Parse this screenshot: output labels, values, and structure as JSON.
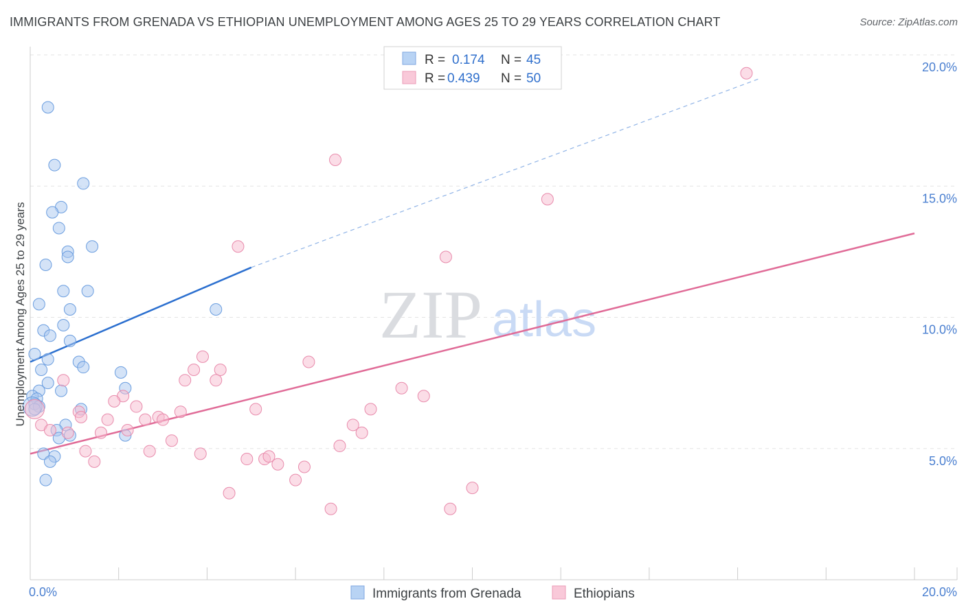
{
  "title": "IMMIGRANTS FROM GRENADA VS ETHIOPIAN UNEMPLOYMENT AMONG AGES 25 TO 29 YEARS CORRELATION CHART",
  "source": "Source: ZipAtlas.com",
  "watermark": {
    "zip": "ZIP",
    "atlas": "atlas"
  },
  "chart_data": {
    "type": "scatter",
    "xlabel": "",
    "ylabel": "Unemployment Among Ages 25 to 29 years",
    "xlim": [
      0,
      20
    ],
    "ylim": [
      0,
      20
    ],
    "x_tick_labels": [
      {
        "value": 0,
        "label": "0.0%"
      },
      {
        "value": 20,
        "label": "20.0%"
      }
    ],
    "y_tick_labels": [
      {
        "value": 5,
        "label": "5.0%"
      },
      {
        "value": 10,
        "label": "10.0%"
      },
      {
        "value": 15,
        "label": "15.0%"
      },
      {
        "value": 20,
        "label": "20.0%"
      }
    ],
    "grid": true,
    "legend_position": "top-center",
    "stats": [
      {
        "r_label": "R =",
        "r_value": "0.174",
        "n_label": "N =",
        "n_value": "45"
      },
      {
        "r_label": "R =",
        "r_value": "0.439",
        "n_label": "N =",
        "n_value": "50"
      }
    ],
    "series": [
      {
        "name": "Immigrants from Grenada",
        "color": "#a9c8f0",
        "stroke": "#6a9ddf",
        "trend_color": "#2b6fcf",
        "trend": {
          "x0": 0,
          "y0": 8.3,
          "x1": 5,
          "y1": 11.9,
          "dash_to_x": 16.5,
          "dash_to_y": 19.1
        },
        "points": [
          [
            0.4,
            18.0
          ],
          [
            0.55,
            15.8
          ],
          [
            1.2,
            15.1
          ],
          [
            0.7,
            14.2
          ],
          [
            0.5,
            14.0
          ],
          [
            0.65,
            13.4
          ],
          [
            1.4,
            12.7
          ],
          [
            0.85,
            12.5
          ],
          [
            0.85,
            12.3
          ],
          [
            0.35,
            12.0
          ],
          [
            0.75,
            11.0
          ],
          [
            1.3,
            11.0
          ],
          [
            0.2,
            10.5
          ],
          [
            0.9,
            10.3
          ],
          [
            4.2,
            10.3
          ],
          [
            0.75,
            9.7
          ],
          [
            0.3,
            9.5
          ],
          [
            0.45,
            9.3
          ],
          [
            0.9,
            9.1
          ],
          [
            0.1,
            8.6
          ],
          [
            0.4,
            8.4
          ],
          [
            1.1,
            8.3
          ],
          [
            1.2,
            8.1
          ],
          [
            0.25,
            8.0
          ],
          [
            2.05,
            7.9
          ],
          [
            0.4,
            7.5
          ],
          [
            0.2,
            7.2
          ],
          [
            0.7,
            7.2
          ],
          [
            2.15,
            7.3
          ],
          [
            0.05,
            7.0
          ],
          [
            0.15,
            6.9
          ],
          [
            0.1,
            6.7
          ],
          [
            0.2,
            6.6
          ],
          [
            0.1,
            6.5
          ],
          [
            1.15,
            6.5
          ],
          [
            0.8,
            5.9
          ],
          [
            0.6,
            5.7
          ],
          [
            0.65,
            5.4
          ],
          [
            0.9,
            5.5
          ],
          [
            2.15,
            5.5
          ],
          [
            0.3,
            4.8
          ],
          [
            0.55,
            4.7
          ],
          [
            0.45,
            4.5
          ],
          [
            0.35,
            3.8
          ],
          [
            0.05,
            6.6
          ]
        ]
      },
      {
        "name": "Ethiopians",
        "color": "#f7bcd0",
        "stroke": "#e88aab",
        "trend_color": "#e06b97",
        "trend": {
          "x0": 0,
          "y0": 4.8,
          "x1": 20,
          "y1": 13.2
        },
        "points": [
          [
            16.2,
            19.3
          ],
          [
            6.9,
            16.0
          ],
          [
            11.7,
            14.5
          ],
          [
            4.7,
            12.7
          ],
          [
            9.4,
            12.3
          ],
          [
            3.9,
            8.5
          ],
          [
            6.3,
            8.3
          ],
          [
            3.7,
            8.0
          ],
          [
            4.3,
            8.0
          ],
          [
            0.75,
            7.6
          ],
          [
            3.5,
            7.6
          ],
          [
            4.2,
            7.6
          ],
          [
            8.4,
            7.3
          ],
          [
            2.1,
            7.0
          ],
          [
            8.9,
            7.0
          ],
          [
            1.9,
            6.8
          ],
          [
            2.4,
            6.6
          ],
          [
            5.1,
            6.5
          ],
          [
            7.7,
            6.5
          ],
          [
            3.4,
            6.4
          ],
          [
            1.1,
            6.4
          ],
          [
            1.15,
            6.2
          ],
          [
            1.75,
            6.1
          ],
          [
            2.6,
            6.1
          ],
          [
            2.9,
            6.2
          ],
          [
            3.0,
            6.1
          ],
          [
            0.25,
            5.9
          ],
          [
            0.45,
            5.7
          ],
          [
            2.2,
            5.7
          ],
          [
            7.3,
            5.9
          ],
          [
            1.6,
            5.6
          ],
          [
            7.5,
            5.6
          ],
          [
            3.2,
            5.3
          ],
          [
            0.85,
            5.6
          ],
          [
            7.0,
            5.1
          ],
          [
            1.25,
            4.9
          ],
          [
            2.7,
            4.9
          ],
          [
            3.85,
            4.8
          ],
          [
            4.9,
            4.6
          ],
          [
            5.3,
            4.6
          ],
          [
            5.4,
            4.7
          ],
          [
            5.6,
            4.4
          ],
          [
            6.2,
            4.3
          ],
          [
            1.45,
            4.5
          ],
          [
            6.0,
            3.8
          ],
          [
            10.0,
            3.5
          ],
          [
            4.5,
            3.3
          ],
          [
            6.8,
            2.7
          ],
          [
            9.5,
            2.7
          ],
          [
            0.1,
            6.5
          ]
        ]
      }
    ]
  },
  "legend": {
    "items": [
      {
        "label": "Immigrants from Grenada"
      },
      {
        "label": "Ethiopians"
      }
    ]
  }
}
